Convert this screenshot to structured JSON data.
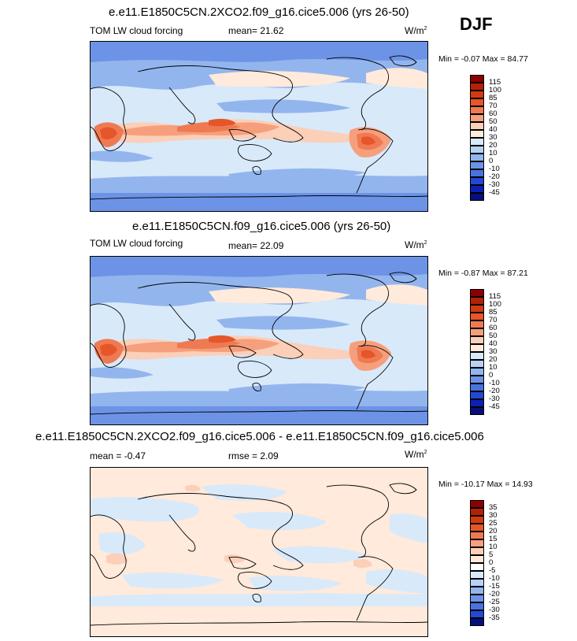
{
  "season": "DJF",
  "panels": [
    {
      "id": "top",
      "title": "e.e11.E1850C5CN.2XCO2.f09_g16.cice5.006 (yrs 26-50)",
      "left_label": "TOM LW cloud forcing",
      "center_label": "mean=  21.62",
      "units": "W/m",
      "units_sup": "2",
      "minmax": "Min = -0.07 Max =  84.77",
      "levels": [
        "115",
        "100",
        "85",
        "70",
        "60",
        "50",
        "40",
        "30",
        "20",
        "10",
        "0",
        "-10",
        "-20",
        "-30",
        "-45"
      ],
      "colors": [
        "#8b0000",
        "#b22207",
        "#d23a10",
        "#e5562a",
        "#ef7a52",
        "#f69f7c",
        "#fbcfb8",
        "#ffeadb",
        "#d8e9fa",
        "#b7d2f4",
        "#93b5ee",
        "#6d93e6",
        "#4873df",
        "#2249d4",
        "#0b20b5",
        "#070f7a"
      ]
    },
    {
      "id": "middle",
      "title": "e.e11.E1850C5CN.f09_g16.cice5.006 (yrs 26-50)",
      "left_label": "TOM LW cloud forcing",
      "center_label": "mean=  22.09",
      "units": "W/m",
      "units_sup": "2",
      "minmax": "Min = -0.87 Max =  87.21",
      "levels": [
        "115",
        "100",
        "85",
        "70",
        "60",
        "50",
        "40",
        "30",
        "20",
        "10",
        "0",
        "-10",
        "-20",
        "-30",
        "-45"
      ],
      "colors": [
        "#8b0000",
        "#b22207",
        "#d23a10",
        "#e5562a",
        "#ef7a52",
        "#f69f7c",
        "#fbcfb8",
        "#ffeadb",
        "#d8e9fa",
        "#b7d2f4",
        "#93b5ee",
        "#6d93e6",
        "#4873df",
        "#2249d4",
        "#0b20b5",
        "#070f7a"
      ]
    },
    {
      "id": "bottom",
      "title": "e.e11.E1850C5CN.2XCO2.f09_g16.cice5.006 - e.e11.E1850C5CN.f09_g16.cice5.006",
      "left_label": "mean =  -0.47",
      "center_label": "rmse =   2.09",
      "units": "W/m",
      "units_sup": "2",
      "minmax": "Min = -10.17 Max =  14.93",
      "levels": [
        "35",
        "30",
        "25",
        "20",
        "15",
        "10",
        "5",
        "0",
        "-5",
        "-10",
        "-15",
        "-20",
        "-25",
        "-30",
        "-35"
      ],
      "colors": [
        "#8b0000",
        "#b22207",
        "#d23a10",
        "#e5562a",
        "#ef7a52",
        "#f69f7c",
        "#fbcfb8",
        "#ffeadb",
        "#ffffff",
        "#d8e9fa",
        "#b7d2f4",
        "#93b5ee",
        "#6d93e6",
        "#4873df",
        "#2249d4",
        "#070f7a"
      ]
    }
  ],
  "chart_data": [
    {
      "type": "heatmap",
      "title": "e.e11.E1850C5CN.2XCO2.f09_g16.cice5.006 (yrs 26-50)",
      "variable": "TOM LW cloud forcing",
      "season": "DJF",
      "mean": 21.62,
      "min": -0.07,
      "max": 84.77,
      "units": "W/m2",
      "contour_levels": [
        -45,
        -30,
        -20,
        -10,
        0,
        10,
        20,
        30,
        40,
        50,
        60,
        70,
        85,
        100,
        115
      ]
    },
    {
      "type": "heatmap",
      "title": "e.e11.E1850C5CN.f09_g16.cice5.006 (yrs 26-50)",
      "variable": "TOM LW cloud forcing",
      "season": "DJF",
      "mean": 22.09,
      "min": -0.87,
      "max": 87.21,
      "units": "W/m2",
      "contour_levels": [
        -45,
        -30,
        -20,
        -10,
        0,
        10,
        20,
        30,
        40,
        50,
        60,
        70,
        85,
        100,
        115
      ]
    },
    {
      "type": "heatmap",
      "title": "e.e11.E1850C5CN.2XCO2.f09_g16.cice5.006 - e.e11.E1850C5CN.f09_g16.cice5.006",
      "variable": "difference",
      "season": "DJF",
      "mean": -0.47,
      "rmse": 2.09,
      "min": -10.17,
      "max": 14.93,
      "units": "W/m2",
      "contour_levels": [
        -35,
        -30,
        -25,
        -20,
        -15,
        -10,
        -5,
        0,
        5,
        10,
        15,
        20,
        25,
        30,
        35
      ]
    }
  ]
}
